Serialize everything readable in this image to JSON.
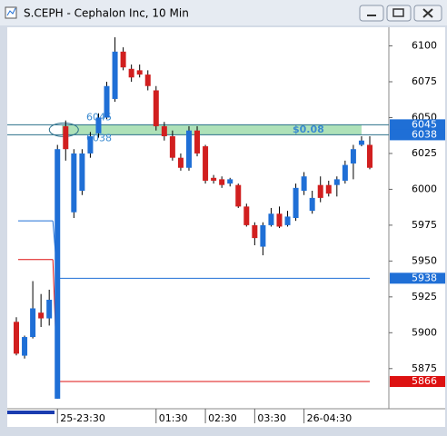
{
  "chart_data": {
    "type": "candlestick",
    "title": "S.CEPH - Cephalon Inc, 10 Min",
    "categories": [
      null,
      null,
      null,
      null,
      null,
      "25-23:30",
      null,
      null,
      null,
      null,
      null,
      null,
      null,
      null,
      null,
      null,
      null,
      "01:30",
      null,
      null,
      null,
      null,
      null,
      "02:30",
      null,
      null,
      null,
      null,
      null,
      "03:30",
      null,
      null,
      null,
      null,
      null,
      "26-04:30",
      null,
      null,
      null,
      null,
      null,
      null,
      null,
      null
    ],
    "open": [
      5907.6,
      5884,
      5897,
      5914,
      5910,
      5854,
      6044,
      5984,
      5999,
      6025,
      6039,
      6050,
      6063,
      6096,
      6084,
      6083,
      6080,
      6069,
      6044,
      6037,
      6022,
      6015,
      6041,
      6030,
      6008,
      6007,
      6004,
      6003,
      5988,
      5975,
      5960,
      5975,
      5983,
      5975,
      5980,
      5999,
      5985,
      6003,
      6003,
      6003,
      6006,
      6018,
      6031,
      6031
    ],
    "high": [
      5910.8,
      5898,
      5936,
      5927,
      5930,
      6031,
      6048,
      6028,
      6028,
      6040,
      6053,
      6075,
      6106,
      6099,
      6087,
      6087,
      6083,
      6072,
      6047,
      6041,
      6025,
      6044,
      6044,
      6031,
      6010,
      6009,
      6008,
      6004,
      5990,
      5977,
      5977,
      5987,
      5988,
      5985,
      6004,
      6012,
      5999,
      6009,
      6006,
      6009,
      6020,
      6031,
      6037,
      6037
    ],
    "low": [
      5884.2,
      5882,
      5896,
      5904,
      5905,
      5854,
      6020,
      5980,
      5996,
      6022,
      6036,
      6049,
      6061,
      6083,
      6075,
      6078,
      6069,
      6041,
      6034,
      6020,
      6013,
      6013,
      6023,
      6004,
      6004,
      6001,
      6002,
      5987,
      5974,
      5961,
      5954,
      5974,
      5973,
      5974,
      5978,
      5996,
      5983,
      5991,
      5995,
      5995,
      6004,
      6007,
      6030,
      6014
    ],
    "close": [
      5885.4,
      5897,
      5917,
      5910,
      5923,
      6028,
      6028,
      6025,
      6025,
      6037,
      6050,
      6072,
      6096,
      6085,
      6078,
      6080,
      6072,
      6044,
      6037,
      6022,
      6015,
      6041,
      6025,
      6006,
      6006,
      6003,
      6007,
      5988,
      5975,
      5966,
      5975,
      5983,
      5974,
      5981,
      6001,
      6009,
      5994,
      5994,
      5997,
      6007,
      6017,
      6028,
      6034,
      6015
    ],
    "up_color": "#1f6fd6",
    "down_color": "#d11f1f",
    "ylim": [
      5847,
      6113
    ],
    "yticks": [
      5875,
      5900,
      5925,
      5950,
      5975,
      6000,
      6025,
      6050,
      6075,
      6100
    ],
    "zone": {
      "top": 6045,
      "bottom": 6038,
      "label": "$0.08",
      "color": "#9ad9a6"
    },
    "levels": [
      {
        "value": 5938,
        "color": "#1f6fd6"
      },
      {
        "value": 5866,
        "color": "#dd1111"
      }
    ],
    "prior_levels": [
      {
        "value": 5978,
        "color": "#1f6fd6"
      },
      {
        "value": 5951,
        "color": "#dd1111"
      }
    ]
  }
}
